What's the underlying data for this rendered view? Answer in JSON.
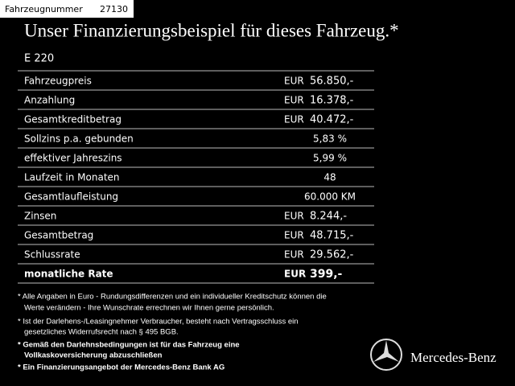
{
  "header": {
    "label": "Fahrzeugnummer",
    "number": "27130"
  },
  "title": "Unser Finanzierungsbeispiel für dieses Fahrzeug.*",
  "model": "E 220",
  "table": {
    "rows": [
      {
        "label": "Fahrzeugpreis",
        "currency": "EUR",
        "amount": "56.850,-"
      },
      {
        "label": "Anzahlung",
        "currency": "EUR",
        "amount": "16.378,-"
      },
      {
        "label": "Gesamtkreditbetrag",
        "currency": "EUR",
        "amount": "40.472,-"
      },
      {
        "label": "Sollzins p.a. gebunden",
        "value": "5,83 %"
      },
      {
        "label": "effektiver Jahreszins",
        "value": "5,99 %"
      },
      {
        "label": "Laufzeit in Monaten",
        "value": "48"
      },
      {
        "label": "Gesamtlaufleistung",
        "value": "60.000 KM"
      },
      {
        "label": "Zinsen",
        "currency": "EUR",
        "amount": "8.244,-"
      },
      {
        "label": "Gesamtbetrag",
        "currency": "EUR",
        "amount": "48.715,-"
      },
      {
        "label": "Schlussrate",
        "currency": "EUR",
        "amount": "29.562,-"
      },
      {
        "label": "monatliche Rate",
        "currency": "EUR",
        "amount": "399,-",
        "bold": true
      }
    ]
  },
  "notes": [
    {
      "lines": [
        "* Alle Angaben in Euro - Rundungsdifferenzen und ein individueller Kreditschutz können die",
        "Werte verändern - Ihre Wunschrate errechnen wir Ihnen gerne persönlich."
      ]
    },
    {
      "lines": [
        "* Ist der Darlehens-/Leasingnehmer Verbraucher, besteht nach Vertragsschluss ein",
        "gesetzliches Widerrufsrecht nach § 495 BGB."
      ]
    },
    {
      "lines": [
        "* Gemäß den Darlehnsbedingungen ist für das Fahrzeug eine",
        "Vollkaskoversicherung abzuschließen"
      ],
      "bold": true
    },
    {
      "lines": [
        "* Ein Finanzierungsangebot der Mercedes-Benz Bank AG"
      ],
      "bold": true
    }
  ],
  "brand": "Mercedes-Benz"
}
